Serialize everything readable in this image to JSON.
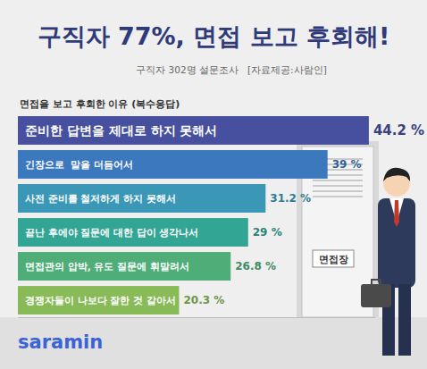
{
  "chart_data": {
    "type": "bar",
    "orientation": "horizontal",
    "title": "구직자 77%, 면접 보고 후회해!",
    "subtitle": "구직자 302명 설문조사   [자료제공:사람인]",
    "annotations": [
      "면접을 보고 후회한 이유 (복수응답)",
      "면접장",
      "saramin"
    ],
    "categories": [
      "준비한 답변을 제대로 하지 못해서",
      "긴장으로  말을 더듬어서",
      "사전 준비를 철저하게 하지 못해서",
      "끝난 후에야 질문에 대한 답이 생각나서",
      "면접관의 압박, 유도 질문에 휘말려서",
      "경쟁자들이 나보다 잘한 것 같아서"
    ],
    "values": [
      44.2,
      39,
      31.2,
      29,
      26.8,
      20.3
    ],
    "value_labels": [
      "44.2 %",
      "39 %",
      "31.2 %",
      "29 %",
      "26.8 %",
      "20.3 %"
    ],
    "colors": [
      "#46509e",
      "#3b78bd",
      "#3a98b6",
      "#33a594",
      "#4fae78",
      "#88ba58"
    ],
    "xlim": [
      0,
      45
    ],
    "tick_labels": false,
    "grid": false,
    "data_labels": true
  }
}
